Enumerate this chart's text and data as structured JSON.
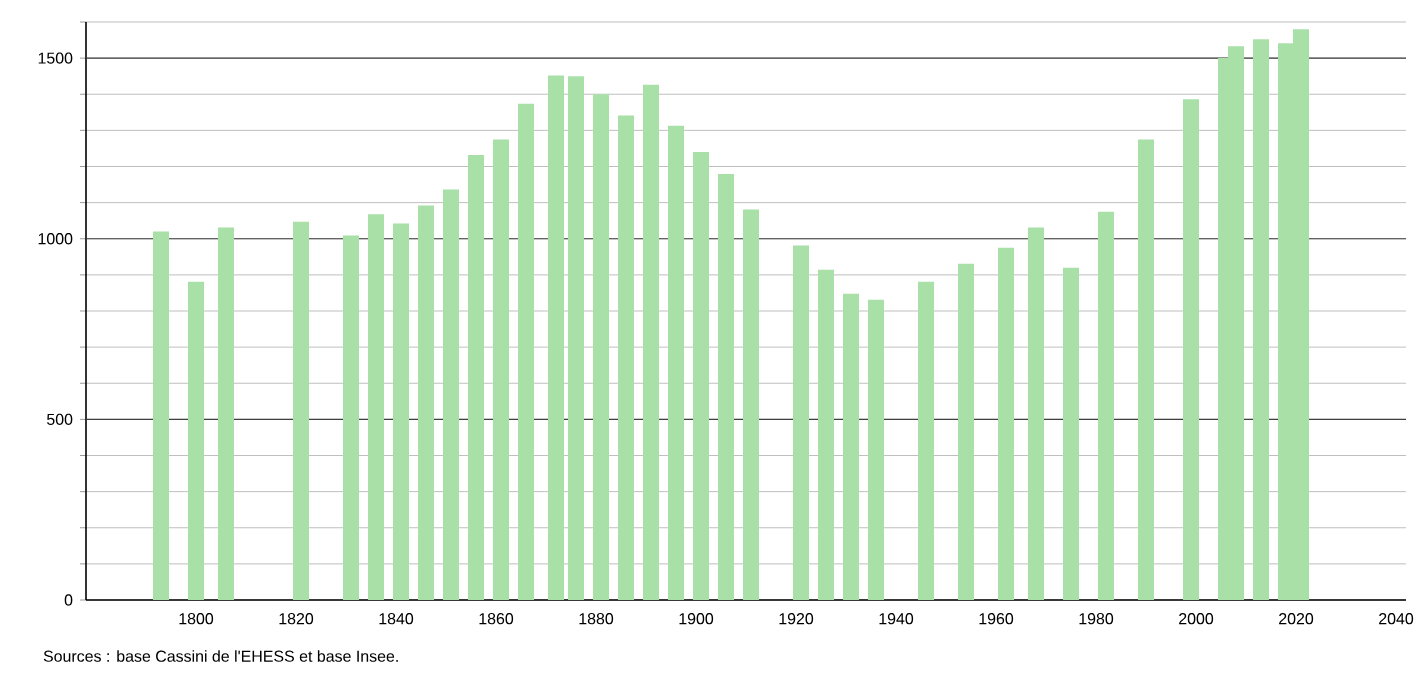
{
  "chart_data": {
    "type": "bar",
    "color": "#a8e0a8",
    "x": [
      1793,
      1800,
      1806,
      1821,
      1831,
      1836,
      1841,
      1846,
      1851,
      1856,
      1861,
      1866,
      1872,
      1876,
      1881,
      1886,
      1891,
      1896,
      1901,
      1906,
      1911,
      1921,
      1926,
      1931,
      1936,
      1946,
      1954,
      1962,
      1968,
      1975,
      1982,
      1990,
      1999,
      2006,
      2008,
      2013,
      2018,
      2021
    ],
    "values": [
      1020,
      881,
      1031,
      1047,
      1009,
      1068,
      1042,
      1092,
      1136,
      1232,
      1275,
      1374,
      1452,
      1450,
      1400,
      1341,
      1426,
      1313,
      1240,
      1179,
      1081,
      981,
      914,
      848,
      831,
      881,
      931,
      975,
      1031,
      920,
      1075,
      1275,
      1386,
      1500,
      1533,
      1552,
      1541,
      1580
    ],
    "xlim": [
      1778,
      2042
    ],
    "xticks": [
      1800,
      1820,
      1840,
      1860,
      1880,
      1900,
      1920,
      1940,
      1960,
      1980,
      2000,
      2020,
      2040
    ],
    "ylim": [
      0,
      1600
    ],
    "yticks": [
      0,
      {
        "value": 100,
        "label": null
      },
      {
        "value": 200,
        "label": null
      },
      {
        "value": 300,
        "label": null
      },
      {
        "value": 400,
        "label": null
      },
      500,
      {
        "value": 600,
        "label": null
      },
      {
        "value": 700,
        "label": null
      },
      {
        "value": 800,
        "label": null
      },
      {
        "value": 900,
        "label": null
      },
      1000,
      {
        "value": 1100,
        "label": null
      },
      {
        "value": 1200,
        "label": null
      },
      {
        "value": 1300,
        "label": null
      },
      {
        "value": 1400,
        "label": null
      },
      1500,
      {
        "value": 1600,
        "label": null
      }
    ],
    "grid": "y",
    "annotations": [
      "Sources : base Cassini de l'EHESS et base Insee."
    ]
  }
}
